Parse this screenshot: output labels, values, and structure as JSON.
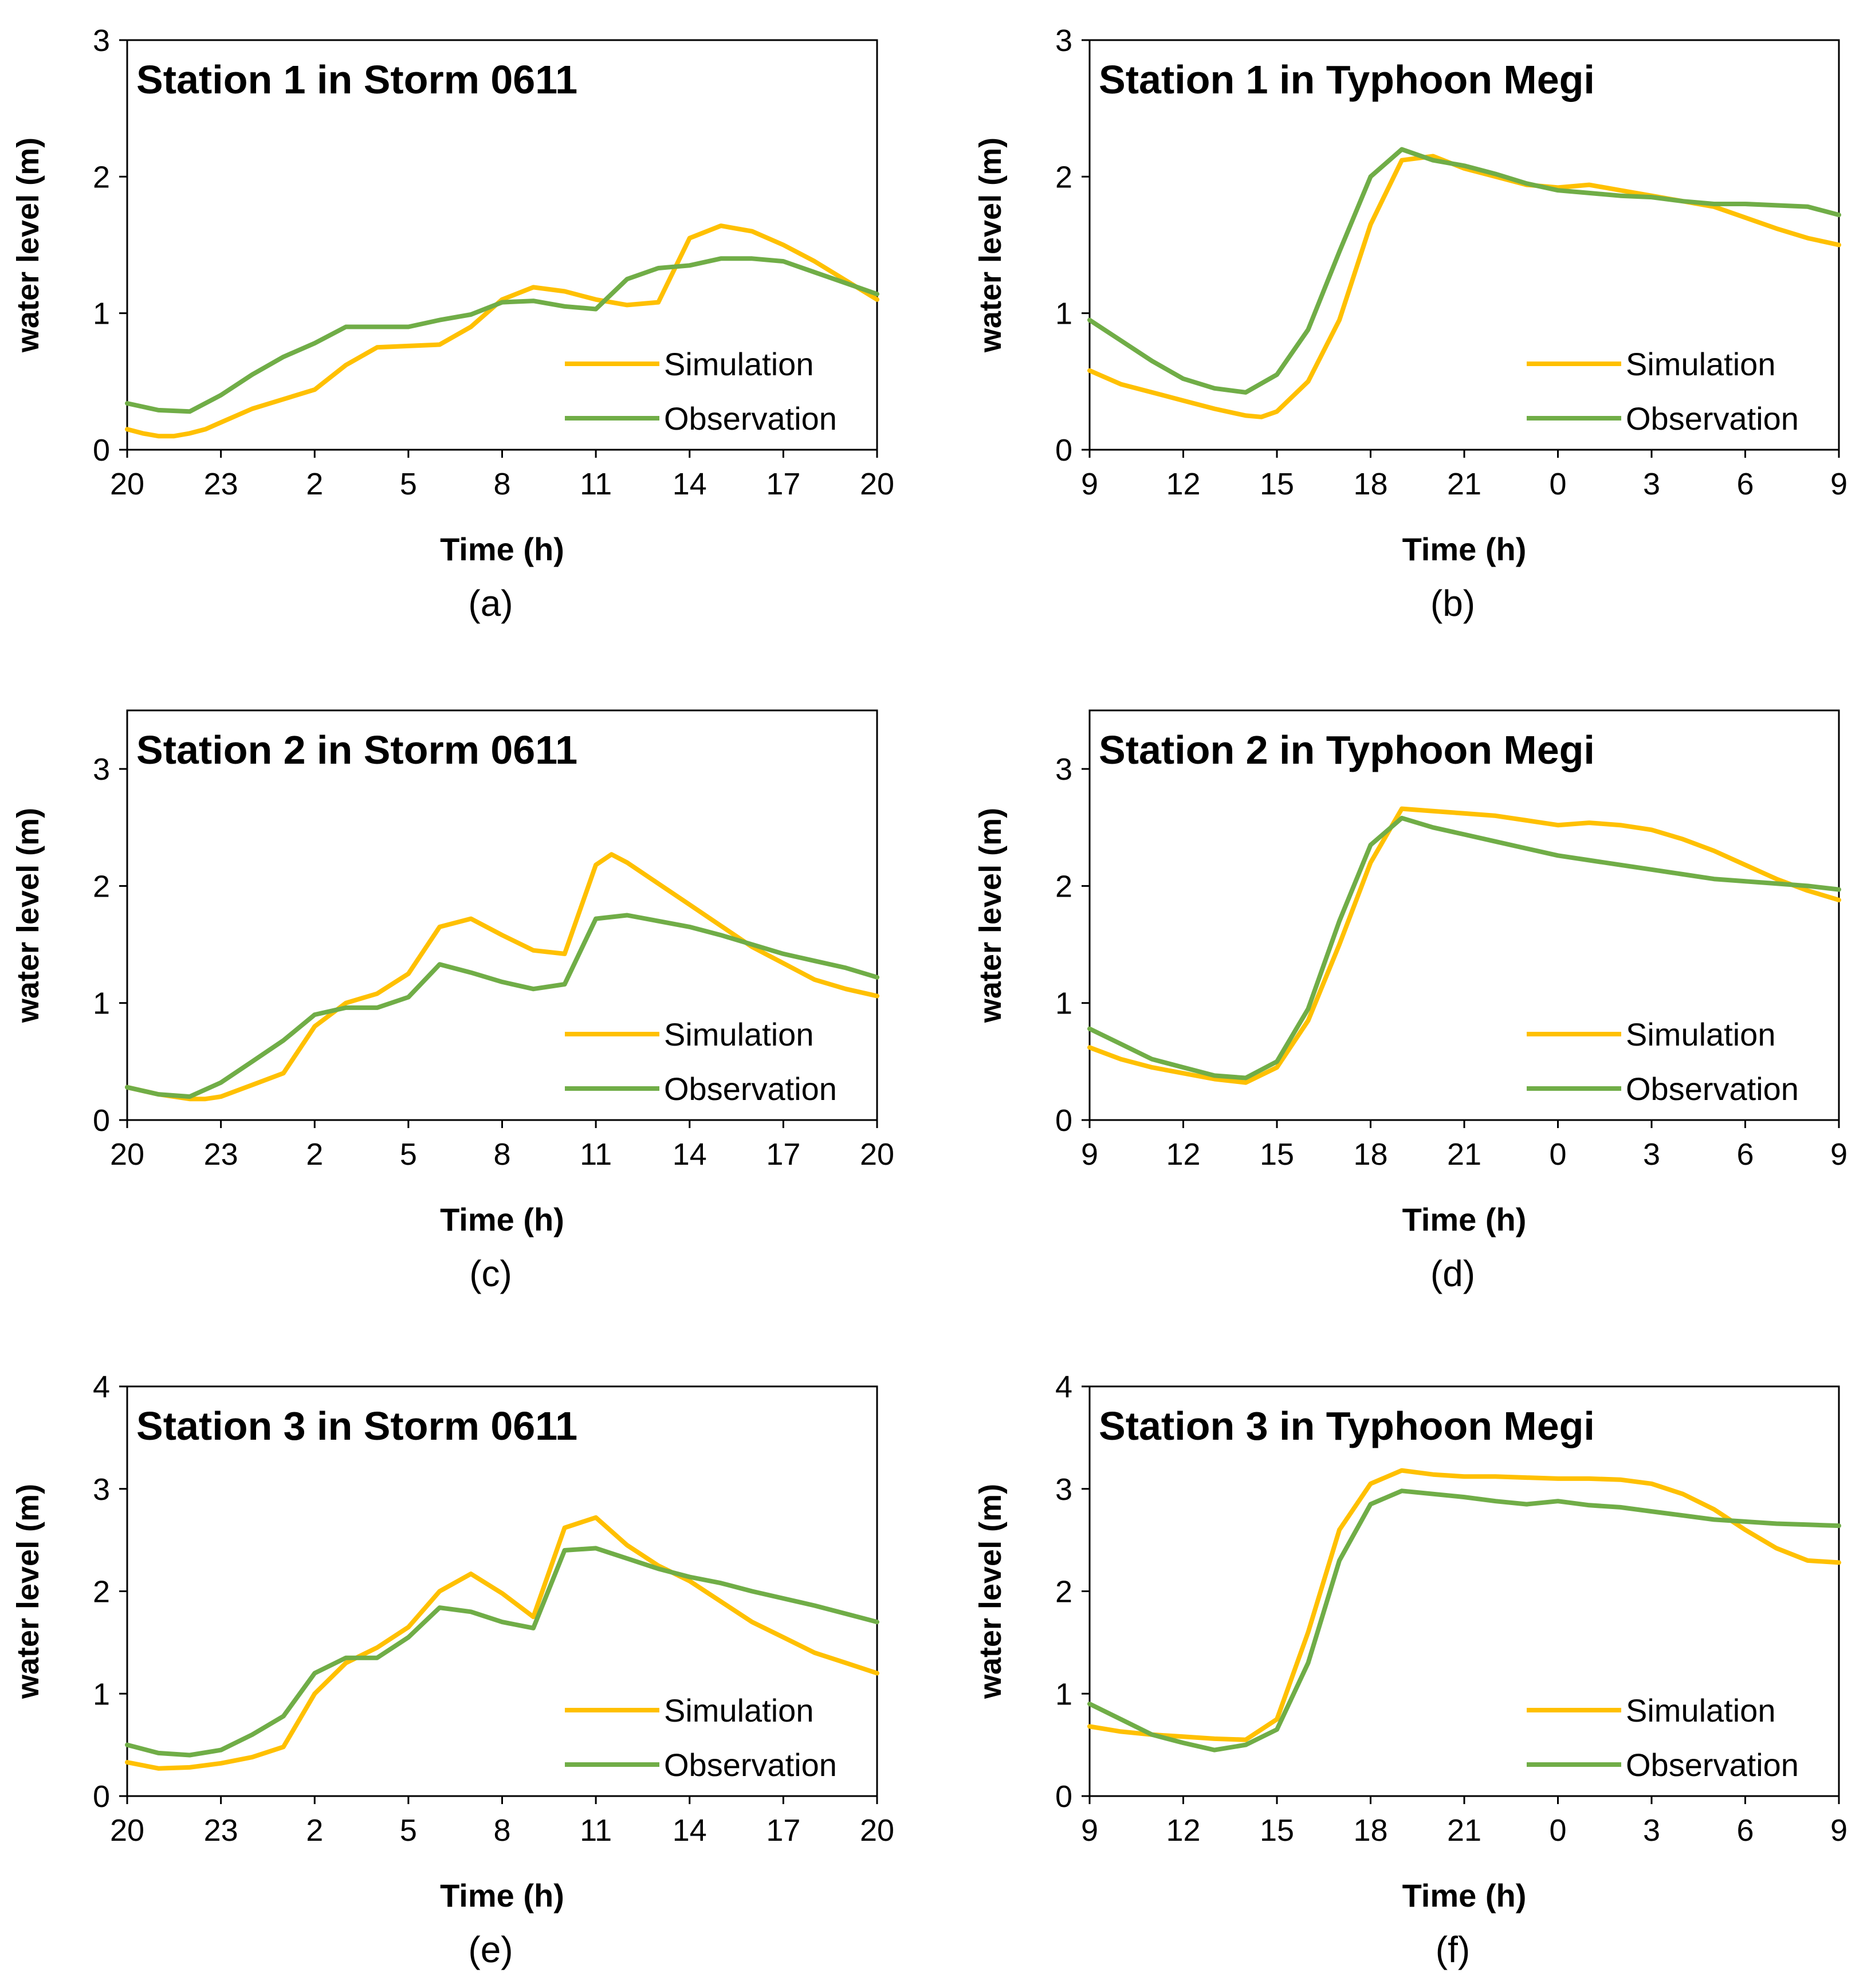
{
  "colors": {
    "simulation": "#ffc000",
    "observation": "#70ad47",
    "axis": "#000000",
    "frame": "#000000"
  },
  "chart_data": [
    {
      "type": "line",
      "panel": "a",
      "caption": "(a)",
      "title": "Station 1 in Storm 0611",
      "xlabel": "Time (h)",
      "ylabel": "water level (m)",
      "ylim": [
        0,
        3
      ],
      "yticks": [
        0,
        1,
        2,
        3
      ],
      "xticks": [
        "20",
        "23",
        "2",
        "5",
        "8",
        "11",
        "14",
        "17",
        "20"
      ],
      "grid": false,
      "legend": "bottom-right",
      "series": [
        {
          "name": "Simulation",
          "color": "#ffc000",
          "x": [
            0,
            0.5,
            1,
            1.5,
            2,
            2.5,
            3,
            4,
            5,
            6,
            7,
            8,
            9,
            10,
            11,
            12,
            13,
            14,
            15,
            16,
            17,
            18,
            19,
            20,
            21,
            22,
            23,
            24
          ],
          "values": [
            0.15,
            0.12,
            0.1,
            0.1,
            0.12,
            0.15,
            0.2,
            0.3,
            0.37,
            0.44,
            0.62,
            0.75,
            0.76,
            0.77,
            0.9,
            1.1,
            1.19,
            1.16,
            1.1,
            1.06,
            1.08,
            1.55,
            1.64,
            1.6,
            1.5,
            1.38,
            1.24,
            1.1
          ]
        },
        {
          "name": "Observation",
          "color": "#70ad47",
          "x": [
            0,
            1,
            2,
            3,
            4,
            5,
            6,
            7,
            8,
            9,
            10,
            11,
            12,
            13,
            14,
            15,
            16,
            17,
            18,
            19,
            20,
            21,
            22,
            23,
            24
          ],
          "values": [
            0.34,
            0.29,
            0.28,
            0.4,
            0.55,
            0.68,
            0.78,
            0.9,
            0.9,
            0.9,
            0.95,
            0.99,
            1.08,
            1.09,
            1.05,
            1.03,
            1.25,
            1.33,
            1.35,
            1.4,
            1.4,
            1.38,
            1.3,
            1.22,
            1.14
          ]
        }
      ]
    },
    {
      "type": "line",
      "panel": "b",
      "caption": "(b)",
      "title": "Station 1 in Typhoon Megi",
      "xlabel": "Time (h)",
      "ylabel": "water level (m)",
      "ylim": [
        0,
        3
      ],
      "yticks": [
        0,
        1,
        2,
        3
      ],
      "xticks": [
        "9",
        "12",
        "15",
        "18",
        "21",
        "0",
        "3",
        "6",
        "9"
      ],
      "grid": false,
      "legend": "bottom-right",
      "series": [
        {
          "name": "Simulation",
          "color": "#ffc000",
          "x": [
            0,
            1,
            2,
            3,
            4,
            5,
            5.5,
            6,
            7,
            8,
            9,
            10,
            11,
            12,
            13,
            14,
            15,
            16,
            17,
            18,
            19,
            20,
            21,
            22,
            23,
            24
          ],
          "values": [
            0.58,
            0.48,
            0.42,
            0.36,
            0.3,
            0.25,
            0.24,
            0.28,
            0.5,
            0.95,
            1.65,
            2.12,
            2.15,
            2.06,
            2.0,
            1.94,
            1.92,
            1.94,
            1.9,
            1.86,
            1.82,
            1.78,
            1.7,
            1.62,
            1.55,
            1.5
          ]
        },
        {
          "name": "Observation",
          "color": "#70ad47",
          "x": [
            0,
            1,
            2,
            3,
            4,
            5,
            6,
            7,
            8,
            9,
            10,
            11,
            12,
            13,
            14,
            15,
            16,
            17,
            18,
            19,
            20,
            21,
            22,
            23,
            24
          ],
          "values": [
            0.95,
            0.8,
            0.65,
            0.52,
            0.45,
            0.42,
            0.55,
            0.88,
            1.45,
            2.0,
            2.2,
            2.12,
            2.08,
            2.02,
            1.95,
            1.9,
            1.88,
            1.86,
            1.85,
            1.82,
            1.8,
            1.8,
            1.79,
            1.78,
            1.72
          ]
        }
      ]
    },
    {
      "type": "line",
      "panel": "c",
      "caption": "(c)",
      "title": "Station 2 in Storm 0611",
      "xlabel": "Time (h)",
      "ylabel": "water level (m)",
      "ylim": [
        0,
        3.5
      ],
      "yticks": [
        0,
        1,
        2,
        3
      ],
      "xticks": [
        "20",
        "23",
        "2",
        "5",
        "8",
        "11",
        "14",
        "17",
        "20"
      ],
      "grid": false,
      "legend": "bottom-right",
      "series": [
        {
          "name": "Simulation",
          "color": "#ffc000",
          "x": [
            0,
            1,
            2,
            2.5,
            3,
            4,
            5,
            6,
            7,
            8,
            9,
            10,
            11,
            12,
            13,
            14,
            15,
            15.5,
            16,
            17,
            18,
            19,
            20,
            21,
            22,
            23,
            24
          ],
          "values": [
            0.28,
            0.22,
            0.18,
            0.18,
            0.2,
            0.3,
            0.4,
            0.8,
            1.0,
            1.08,
            1.25,
            1.65,
            1.72,
            1.58,
            1.45,
            1.42,
            2.18,
            2.27,
            2.2,
            2.02,
            1.84,
            1.66,
            1.48,
            1.34,
            1.2,
            1.12,
            1.06
          ]
        },
        {
          "name": "Observation",
          "color": "#70ad47",
          "x": [
            0,
            1,
            2,
            3,
            4,
            5,
            6,
            7,
            8,
            9,
            10,
            11,
            12,
            13,
            14,
            15,
            16,
            17,
            18,
            19,
            20,
            21,
            22,
            23,
            24
          ],
          "values": [
            0.28,
            0.22,
            0.2,
            0.32,
            0.5,
            0.68,
            0.9,
            0.96,
            0.96,
            1.05,
            1.33,
            1.26,
            1.18,
            1.12,
            1.16,
            1.72,
            1.75,
            1.7,
            1.65,
            1.58,
            1.5,
            1.42,
            1.36,
            1.3,
            1.22
          ]
        }
      ]
    },
    {
      "type": "line",
      "panel": "d",
      "caption": "(d)",
      "title": "Station 2 in Typhoon Megi",
      "xlabel": "Time (h)",
      "ylabel": "water level (m)",
      "ylim": [
        0,
        3.5
      ],
      "yticks": [
        0,
        1,
        2,
        3
      ],
      "xticks": [
        "9",
        "12",
        "15",
        "18",
        "21",
        "0",
        "3",
        "6",
        "9"
      ],
      "grid": false,
      "legend": "bottom-right",
      "series": [
        {
          "name": "Simulation",
          "color": "#ffc000",
          "x": [
            0,
            1,
            2,
            3,
            4,
            5,
            6,
            7,
            8,
            9,
            10,
            11,
            12,
            13,
            14,
            15,
            16,
            17,
            18,
            19,
            20,
            21,
            22,
            23,
            24
          ],
          "values": [
            0.62,
            0.52,
            0.45,
            0.4,
            0.35,
            0.32,
            0.45,
            0.85,
            1.5,
            2.2,
            2.66,
            2.64,
            2.62,
            2.6,
            2.56,
            2.52,
            2.54,
            2.52,
            2.48,
            2.4,
            2.3,
            2.18,
            2.06,
            1.96,
            1.88
          ]
        },
        {
          "name": "Observation",
          "color": "#70ad47",
          "x": [
            0,
            1,
            2,
            3,
            4,
            5,
            6,
            7,
            8,
            9,
            10,
            11,
            12,
            13,
            14,
            15,
            16,
            17,
            18,
            19,
            20,
            21,
            22,
            23,
            24
          ],
          "values": [
            0.78,
            0.65,
            0.52,
            0.45,
            0.38,
            0.36,
            0.5,
            0.95,
            1.7,
            2.35,
            2.58,
            2.5,
            2.44,
            2.38,
            2.32,
            2.26,
            2.22,
            2.18,
            2.14,
            2.1,
            2.06,
            2.04,
            2.02,
            2.0,
            1.97
          ]
        }
      ]
    },
    {
      "type": "line",
      "panel": "e",
      "caption": "(e)",
      "title": "Station 3 in Storm 0611",
      "xlabel": "Time (h)",
      "ylabel": "water level (m)",
      "ylim": [
        0,
        4
      ],
      "yticks": [
        0,
        1,
        2,
        3,
        4
      ],
      "xticks": [
        "20",
        "23",
        "2",
        "5",
        "8",
        "11",
        "14",
        "17",
        "20"
      ],
      "grid": false,
      "legend": "bottom-right",
      "series": [
        {
          "name": "Simulation",
          "color": "#ffc000",
          "x": [
            0,
            1,
            2,
            3,
            4,
            5,
            6,
            7,
            8,
            9,
            10,
            11,
            12,
            13,
            14,
            15,
            16,
            17,
            18,
            19,
            20,
            21,
            22,
            23,
            24
          ],
          "values": [
            0.33,
            0.27,
            0.28,
            0.32,
            0.38,
            0.48,
            1.0,
            1.3,
            1.45,
            1.65,
            2.0,
            2.17,
            1.98,
            1.75,
            2.62,
            2.72,
            2.45,
            2.25,
            2.1,
            1.9,
            1.7,
            1.55,
            1.4,
            1.3,
            1.2
          ]
        },
        {
          "name": "Observation",
          "color": "#70ad47",
          "x": [
            0,
            1,
            2,
            3,
            4,
            5,
            6,
            7,
            8,
            9,
            10,
            11,
            12,
            13,
            14,
            15,
            16,
            17,
            18,
            19,
            20,
            21,
            22,
            23,
            24
          ],
          "values": [
            0.5,
            0.42,
            0.4,
            0.45,
            0.6,
            0.78,
            1.2,
            1.35,
            1.35,
            1.55,
            1.84,
            1.8,
            1.7,
            1.64,
            2.4,
            2.42,
            2.32,
            2.22,
            2.14,
            2.08,
            2.0,
            1.93,
            1.86,
            1.78,
            1.7
          ]
        }
      ]
    },
    {
      "type": "line",
      "panel": "f",
      "caption": "(f)",
      "title": "Station 3 in Typhoon Megi",
      "xlabel": "Time (h)",
      "ylabel": "water level (m)",
      "ylim": [
        0,
        4
      ],
      "yticks": [
        0,
        1,
        2,
        3,
        4
      ],
      "xticks": [
        "9",
        "12",
        "15",
        "18",
        "21",
        "0",
        "3",
        "6",
        "9"
      ],
      "grid": false,
      "legend": "bottom-right",
      "series": [
        {
          "name": "Simulation",
          "color": "#ffc000",
          "x": [
            0,
            1,
            2,
            3,
            4,
            5,
            6,
            7,
            8,
            9,
            10,
            11,
            12,
            13,
            14,
            15,
            16,
            17,
            18,
            19,
            20,
            21,
            22,
            23,
            24
          ],
          "values": [
            0.68,
            0.63,
            0.6,
            0.58,
            0.56,
            0.55,
            0.75,
            1.6,
            2.6,
            3.05,
            3.18,
            3.14,
            3.12,
            3.12,
            3.11,
            3.1,
            3.1,
            3.09,
            3.05,
            2.95,
            2.8,
            2.6,
            2.42,
            2.3,
            2.28
          ]
        },
        {
          "name": "Observation",
          "color": "#70ad47",
          "x": [
            0,
            1,
            2,
            3,
            4,
            5,
            6,
            7,
            8,
            9,
            10,
            11,
            12,
            13,
            14,
            15,
            16,
            17,
            18,
            19,
            20,
            21,
            22,
            23,
            24
          ],
          "values": [
            0.9,
            0.75,
            0.6,
            0.52,
            0.45,
            0.5,
            0.65,
            1.3,
            2.3,
            2.85,
            2.98,
            2.95,
            2.92,
            2.88,
            2.85,
            2.88,
            2.84,
            2.82,
            2.78,
            2.74,
            2.7,
            2.68,
            2.66,
            2.65,
            2.64
          ]
        }
      ]
    }
  ]
}
